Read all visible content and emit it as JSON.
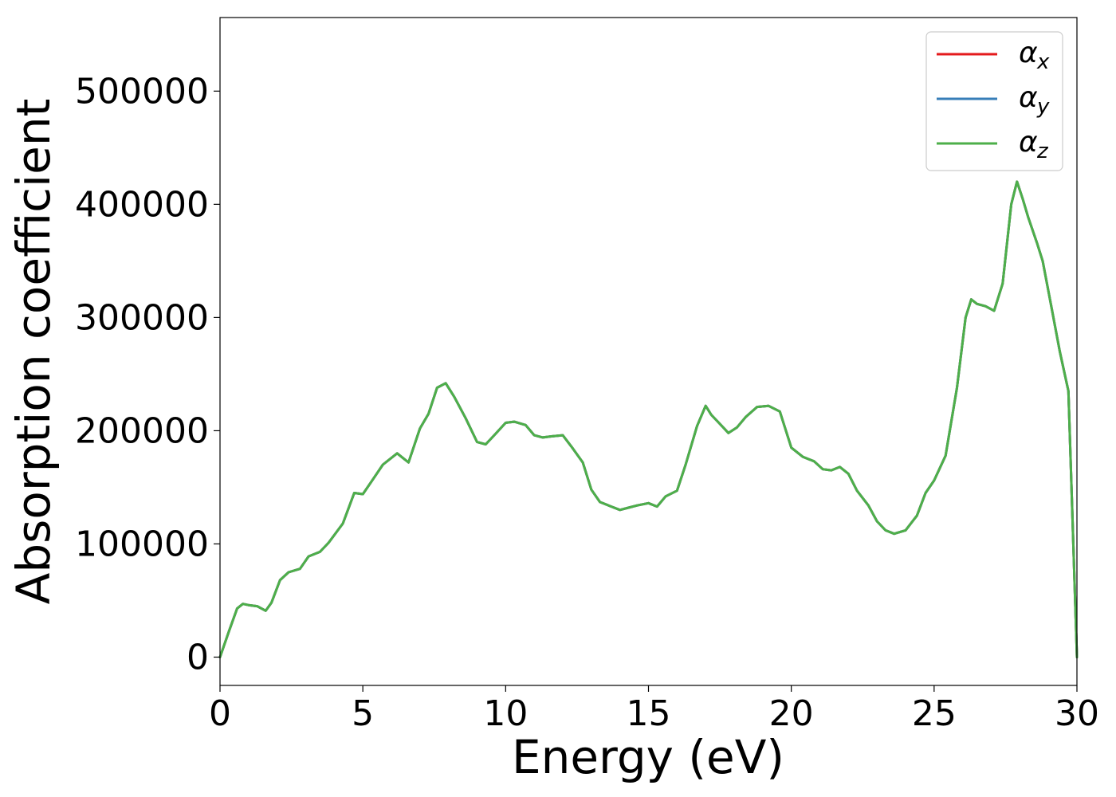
{
  "chart_data": {
    "type": "line",
    "title": "",
    "xlabel": "Energy (eV)",
    "ylabel": "Absorption coefficient",
    "xlim": [
      0,
      30
    ],
    "ylim": [
      -25000,
      565000
    ],
    "xticks": [
      0,
      5,
      10,
      15,
      20,
      25,
      30
    ],
    "xtick_labels": [
      "0",
      "5",
      "10",
      "15",
      "20",
      "25",
      "30"
    ],
    "yticks": [
      0,
      100000,
      200000,
      300000,
      400000,
      500000
    ],
    "ytick_labels": [
      "0",
      "100000",
      "200000",
      "300000",
      "400000",
      "500000"
    ],
    "grid": false,
    "legend_position": "top-right",
    "x": [
      0,
      0.3,
      0.6,
      0.8,
      1.0,
      1.3,
      1.6,
      1.8,
      2.1,
      2.4,
      2.8,
      3.1,
      3.5,
      3.8,
      4.3,
      4.7,
      5.0,
      5.3,
      5.7,
      6.2,
      6.6,
      7.0,
      7.3,
      7.6,
      7.9,
      8.2,
      8.6,
      9.0,
      9.3,
      9.6,
      10.0,
      10.3,
      10.7,
      11.0,
      11.3,
      11.6,
      12.0,
      12.3,
      12.7,
      13.0,
      13.3,
      13.7,
      14.0,
      14.3,
      14.6,
      15.0,
      15.3,
      15.6,
      16.0,
      16.3,
      16.7,
      17.0,
      17.2,
      17.5,
      17.8,
      18.1,
      18.4,
      18.8,
      19.2,
      19.6,
      20.0,
      20.4,
      20.8,
      21.1,
      21.4,
      21.7,
      22.0,
      22.3,
      22.7,
      23.0,
      23.3,
      23.6,
      24.0,
      24.4,
      24.7,
      25.0,
      25.4,
      25.8,
      26.1,
      26.3,
      26.5,
      26.8,
      27.1,
      27.4,
      27.7,
      27.9,
      28.1,
      28.3,
      28.6,
      28.8,
      29.1,
      29.4,
      29.7,
      30.0
    ],
    "series": [
      {
        "name": "α_x",
        "color": "#e41a1c",
        "values": [
          0,
          22000,
          43000,
          47000,
          46000,
          45000,
          41000,
          48000,
          68000,
          75000,
          78000,
          89000,
          93000,
          101000,
          118000,
          145000,
          144000,
          155000,
          170000,
          180000,
          172000,
          202000,
          215000,
          238000,
          242000,
          230000,
          211000,
          190000,
          188000,
          196000,
          207000,
          208000,
          205000,
          196000,
          194000,
          195000,
          196000,
          186000,
          172000,
          148000,
          137000,
          133000,
          130000,
          132000,
          134000,
          136000,
          133000,
          142000,
          147000,
          170000,
          204000,
          222000,
          214000,
          206000,
          198000,
          203000,
          212000,
          221000,
          222000,
          217000,
          185000,
          177000,
          173000,
          166000,
          165000,
          168000,
          162000,
          147000,
          134000,
          120000,
          112000,
          109000,
          112000,
          125000,
          145000,
          156000,
          178000,
          238000,
          300000,
          316000,
          312000,
          310000,
          306000,
          330000,
          400000,
          420000,
          405000,
          388000,
          366000,
          350000,
          310000,
          270000,
          235000,
          0
        ]
      },
      {
        "name": "α_y",
        "color": "#377eb8",
        "values": [
          0,
          22000,
          43000,
          47000,
          46000,
          45000,
          41000,
          48000,
          68000,
          75000,
          78000,
          89000,
          93000,
          101000,
          118000,
          145000,
          144000,
          155000,
          170000,
          180000,
          172000,
          202000,
          215000,
          238000,
          242000,
          230000,
          211000,
          190000,
          188000,
          196000,
          207000,
          208000,
          205000,
          196000,
          194000,
          195000,
          196000,
          186000,
          172000,
          148000,
          137000,
          133000,
          130000,
          132000,
          134000,
          136000,
          133000,
          142000,
          147000,
          170000,
          204000,
          222000,
          214000,
          206000,
          198000,
          203000,
          212000,
          221000,
          222000,
          217000,
          185000,
          177000,
          173000,
          166000,
          165000,
          168000,
          162000,
          147000,
          134000,
          120000,
          112000,
          109000,
          112000,
          125000,
          145000,
          156000,
          178000,
          238000,
          300000,
          316000,
          312000,
          310000,
          306000,
          330000,
          400000,
          420000,
          405000,
          388000,
          366000,
          350000,
          310000,
          270000,
          235000,
          0
        ]
      },
      {
        "name": "α_z",
        "color": "#4daf4a",
        "values": [
          0,
          22000,
          43000,
          47000,
          46000,
          45000,
          41000,
          48000,
          68000,
          75000,
          78000,
          89000,
          93000,
          101000,
          118000,
          145000,
          144000,
          155000,
          170000,
          180000,
          172000,
          202000,
          215000,
          238000,
          242000,
          230000,
          211000,
          190000,
          188000,
          196000,
          207000,
          208000,
          205000,
          196000,
          194000,
          195000,
          196000,
          186000,
          172000,
          148000,
          137000,
          133000,
          130000,
          132000,
          134000,
          136000,
          133000,
          142000,
          147000,
          170000,
          204000,
          222000,
          214000,
          206000,
          198000,
          203000,
          212000,
          221000,
          222000,
          217000,
          185000,
          177000,
          173000,
          166000,
          165000,
          168000,
          162000,
          147000,
          134000,
          120000,
          112000,
          109000,
          112000,
          125000,
          145000,
          156000,
          178000,
          238000,
          300000,
          316000,
          312000,
          310000,
          306000,
          330000,
          400000,
          420000,
          405000,
          388000,
          366000,
          350000,
          310000,
          270000,
          235000,
          0
        ]
      }
    ],
    "legend": [
      {
        "base": "α",
        "sub": "x",
        "color": "#e41a1c"
      },
      {
        "base": "α",
        "sub": "y",
        "color": "#377eb8"
      },
      {
        "base": "α",
        "sub": "z",
        "color": "#4daf4a"
      }
    ]
  }
}
